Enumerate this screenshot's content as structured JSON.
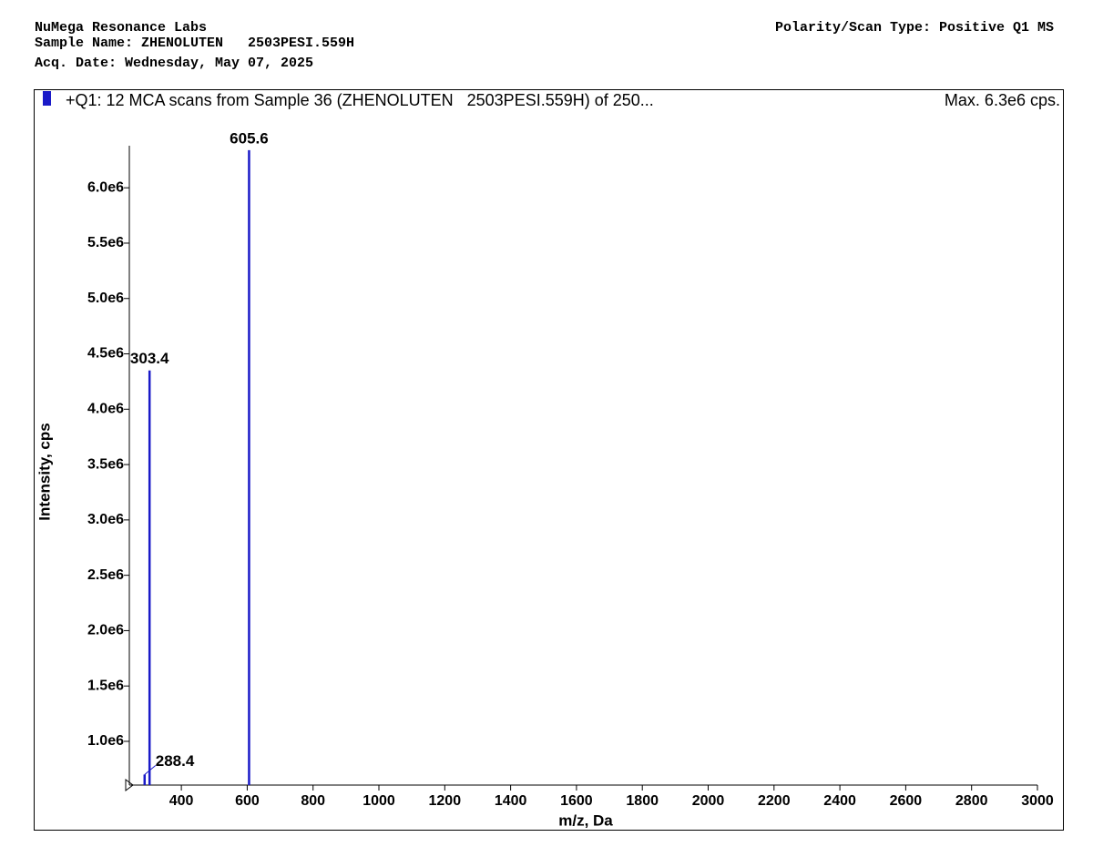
{
  "header": {
    "lab": "NuMega Resonance Labs",
    "sample_name": "Sample Name: ZHENOLUTEN   2503PESI.559H",
    "acq_date": "Acq. Date: Wednesday, May 07, 2025",
    "polarity": "Polarity/Scan Type: Positive Q1 MS"
  },
  "chart_data": {
    "type": "spectrum",
    "title": "+Q1: 12 MCA scans from Sample 36 (ZHENOLUTEN   2503PESI.559H) of 250...",
    "max_label": "Max. 6.3e6 cps.",
    "x_label": "m/z, Da",
    "y_label": "Intensity, cps",
    "color": "#1a1ac8",
    "x": [
      288.4,
      303.4,
      605.6
    ],
    "values": [
      700000,
      4350000,
      6340000
    ],
    "xlim": [
      242,
      3000
    ],
    "ylim": [
      605000,
      6380000
    ],
    "xticks": [
      400,
      600,
      800,
      1000,
      1200,
      1400,
      1600,
      1800,
      2000,
      2200,
      2400,
      2600,
      2800,
      3000
    ],
    "yticks": [
      {
        "value": 1000000,
        "label": "1.0e6"
      },
      {
        "value": 1500000,
        "label": "1.5e6"
      },
      {
        "value": 2000000,
        "label": "2.0e6"
      },
      {
        "value": 2500000,
        "label": "2.5e6"
      },
      {
        "value": 3000000,
        "label": "3.0e6"
      },
      {
        "value": 3500000,
        "label": "3.5e6"
      },
      {
        "value": 4000000,
        "label": "4.0e6"
      },
      {
        "value": 4500000,
        "label": "4.5e6"
      },
      {
        "value": 5000000,
        "label": "5.0e6"
      },
      {
        "value": 5500000,
        "label": "5.5e6"
      },
      {
        "value": 6000000,
        "label": "6.0e6"
      }
    ]
  }
}
